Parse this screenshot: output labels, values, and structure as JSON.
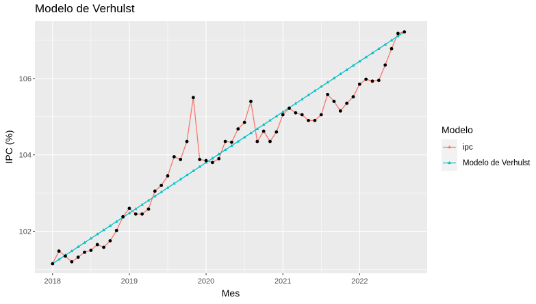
{
  "chart_data": {
    "type": "line",
    "title": "Modelo de Verhulst",
    "xlabel": "Mes",
    "ylabel": "IPC (%)",
    "xlim": [
      2017.77,
      2022.88
    ],
    "ylim": [
      100.9,
      107.5
    ],
    "x_ticks": [
      {
        "value": 2018,
        "label": "2018"
      },
      {
        "value": 2019,
        "label": "2019"
      },
      {
        "value": 2020,
        "label": "2020"
      },
      {
        "value": 2021,
        "label": "2021"
      },
      {
        "value": 2022,
        "label": "2022"
      }
    ],
    "y_ticks": [
      {
        "value": 102,
        "label": "102"
      },
      {
        "value": 104,
        "label": "104"
      },
      {
        "value": 106,
        "label": "106"
      }
    ],
    "grid": true,
    "legend": {
      "title": "Modelo",
      "position": "right"
    },
    "x_start": 2018,
    "x_step_months": 1,
    "series": [
      {
        "name": "ipc",
        "color": "#F8766D",
        "values": [
          101.15,
          101.48,
          101.35,
          101.2,
          101.32,
          101.45,
          101.5,
          101.65,
          101.58,
          101.75,
          102.02,
          102.38,
          102.6,
          102.45,
          102.45,
          102.58,
          103.05,
          103.2,
          103.45,
          103.95,
          103.88,
          104.35,
          105.5,
          103.88,
          103.85,
          103.8,
          103.9,
          104.35,
          104.33,
          104.68,
          104.85,
          105.4,
          104.35,
          104.62,
          104.35,
          104.6,
          105.05,
          105.22,
          105.1,
          105.05,
          104.9,
          104.9,
          105.05,
          105.58,
          105.4,
          105.15,
          105.35,
          105.52,
          105.85,
          105.98,
          105.93,
          105.95,
          106.35,
          106.78,
          107.18,
          107.22
        ]
      },
      {
        "name": "Modelo de Verhulst",
        "color": "#00BFC4",
        "start": 101.15,
        "end": 107.22
      }
    ]
  }
}
